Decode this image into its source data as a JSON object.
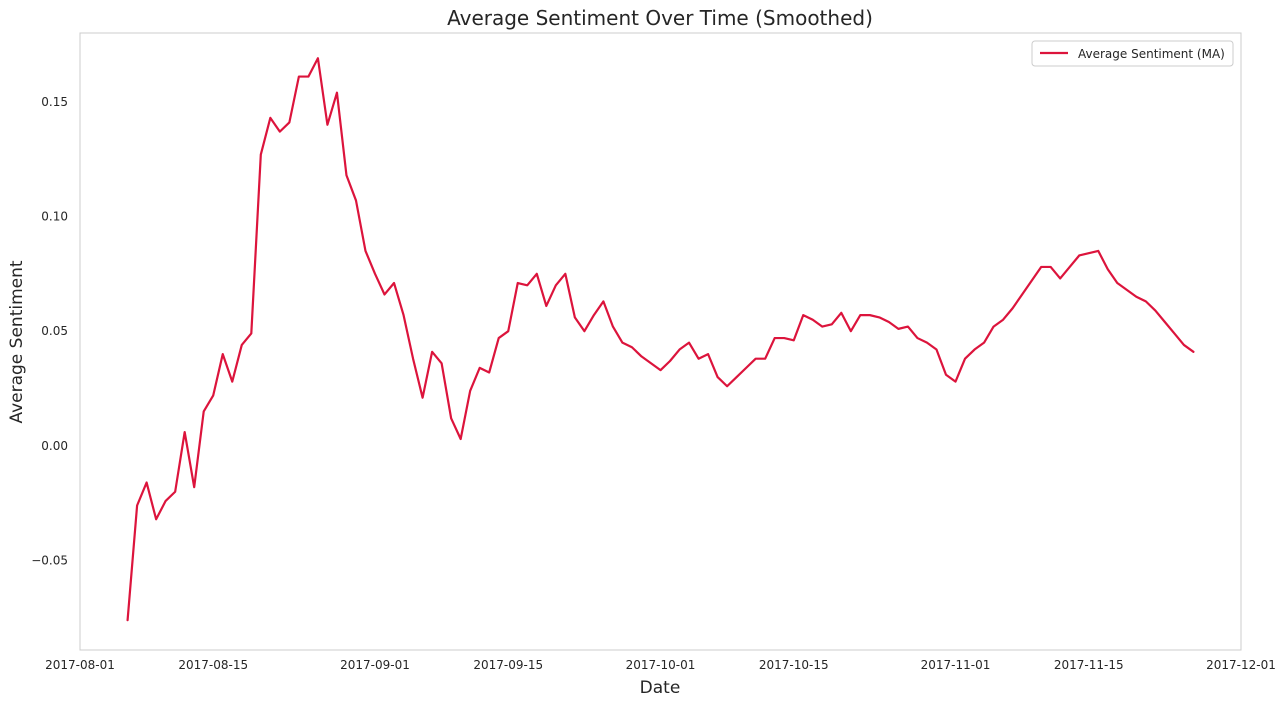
{
  "chart_data": {
    "type": "line",
    "title": "Average Sentiment Over Time (Smoothed)",
    "xlabel": "Date",
    "ylabel": "Average Sentiment",
    "xlim": [
      "2017-08-01",
      "2017-12-01"
    ],
    "ylim": [
      -0.089,
      0.18
    ],
    "x_ticks": [
      "2017-08-01",
      "2017-08-15",
      "2017-09-01",
      "2017-09-15",
      "2017-10-01",
      "2017-10-15",
      "2017-11-01",
      "2017-11-15",
      "2017-12-01"
    ],
    "y_ticks": [
      -0.05,
      0.0,
      0.05,
      0.1,
      0.15
    ],
    "y_tick_labels": [
      "−0.05",
      "0.00",
      "0.05",
      "0.10",
      "0.15"
    ],
    "grid": false,
    "legend_position": "top-right",
    "series": [
      {
        "name": "Average Sentiment (MA)",
        "color": "#dc143c",
        "x_start": "2017-08-06",
        "values": [
          -0.076,
          -0.026,
          -0.016,
          -0.032,
          -0.024,
          -0.02,
          0.006,
          -0.018,
          0.015,
          0.022,
          0.04,
          0.028,
          0.044,
          0.049,
          0.127,
          0.143,
          0.137,
          0.141,
          0.161,
          0.161,
          0.169,
          0.14,
          0.154,
          0.118,
          0.107,
          0.085,
          0.075,
          0.066,
          0.071,
          0.057,
          0.038,
          0.021,
          0.041,
          0.036,
          0.012,
          0.003,
          0.024,
          0.034,
          0.032,
          0.047,
          0.05,
          0.071,
          0.07,
          0.075,
          0.061,
          0.07,
          0.075,
          0.056,
          0.05,
          0.057,
          0.063,
          0.052,
          0.045,
          0.043,
          0.039,
          0.036,
          0.033,
          0.037,
          0.042,
          0.045,
          0.038,
          0.04,
          0.03,
          0.026,
          0.03,
          0.034,
          0.038,
          0.038,
          0.047,
          0.047,
          0.046,
          0.057,
          0.055,
          0.052,
          0.053,
          0.058,
          0.05,
          0.057,
          0.057,
          0.056,
          0.054,
          0.051,
          0.052,
          0.047,
          0.045,
          0.042,
          0.031,
          0.028,
          0.038,
          0.042,
          0.045,
          0.052,
          0.055,
          0.06,
          0.066,
          0.072,
          0.078,
          0.078,
          0.073,
          0.078,
          0.083,
          0.084,
          0.085,
          0.077,
          0.071,
          0.068,
          0.065,
          0.063,
          0.059,
          0.054,
          0.049,
          0.044,
          0.041
        ]
      }
    ]
  }
}
